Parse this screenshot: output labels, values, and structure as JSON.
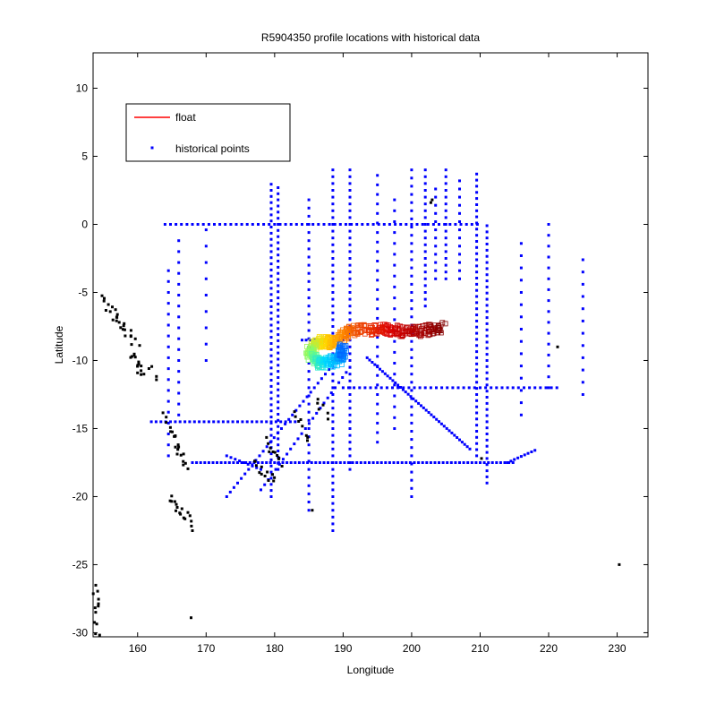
{
  "chart_data": {
    "type": "scatter",
    "title": "R5904350 profile locations with historical data",
    "xlabel": "Longitude",
    "ylabel": "Latitude",
    "xlim": [
      153.5,
      234.5
    ],
    "ylim": [
      -30.3,
      12.6
    ],
    "xticks": [
      160,
      170,
      180,
      190,
      200,
      210,
      220,
      230
    ],
    "yticks": [
      10,
      5,
      0,
      -5,
      -10,
      -15,
      -20,
      -25,
      -30
    ],
    "grid": false,
    "legend": {
      "placement": "top-left",
      "entries": [
        {
          "label": "float",
          "marker": "line",
          "color": "#ff0000"
        },
        {
          "label": "historical points",
          "marker": "dot",
          "color": "#0000ff"
        }
      ]
    },
    "series": [
      {
        "name": "historical points",
        "color": "#0000ff",
        "marker": "dot",
        "lines": [
          {
            "axis": "lat",
            "value": 0,
            "from": 164,
            "to": 210,
            "step": 0.8
          },
          {
            "axis": "lat",
            "value": -12,
            "from": 190,
            "to": 222,
            "step": 0.8
          },
          {
            "axis": "lat",
            "value": -14.5,
            "from": 162,
            "to": 183,
            "step": 0.7
          },
          {
            "axis": "lat",
            "value": -17.5,
            "from": 168,
            "to": 215,
            "step": 0.6
          },
          {
            "axis": "lat",
            "value": -8.5,
            "from": 184,
            "to": 190,
            "step": 0.6
          },
          {
            "axis": "lon",
            "value": 179.5,
            "from": -20,
            "to": 3,
            "step": 0.45
          },
          {
            "axis": "lon",
            "value": 180.5,
            "from": -18,
            "to": 3,
            "step": 0.45
          },
          {
            "axis": "lon",
            "value": 185,
            "from": -21,
            "to": 2,
            "step": 0.6
          },
          {
            "axis": "lon",
            "value": 188.5,
            "from": -22.5,
            "to": 4,
            "step": 0.5
          },
          {
            "axis": "lon",
            "value": 191,
            "from": -18,
            "to": 4,
            "step": 0.5
          },
          {
            "axis": "lon",
            "value": 195,
            "from": -16,
            "to": 4,
            "step": 0.7
          },
          {
            "axis": "lon",
            "value": 197.5,
            "from": -15,
            "to": 2,
            "step": 0.8
          },
          {
            "axis": "lon",
            "value": 200,
            "from": -20,
            "to": 4.4,
            "step": 0.6
          },
          {
            "axis": "lon",
            "value": 202,
            "from": -6,
            "to": 4,
            "step": 0.5
          },
          {
            "axis": "lon",
            "value": 203.5,
            "from": -4,
            "to": 3,
            "step": 0.6
          },
          {
            "axis": "lon",
            "value": 205,
            "from": -4,
            "to": 4,
            "step": 0.5
          },
          {
            "axis": "lon",
            "value": 207,
            "from": -4,
            "to": 3.5,
            "step": 0.6
          },
          {
            "axis": "lon",
            "value": 209.5,
            "from": -17,
            "to": 4,
            "step": 0.45
          },
          {
            "axis": "lon",
            "value": 211,
            "from": -19,
            "to": 0,
            "step": 0.45
          },
          {
            "axis": "lon",
            "value": 216,
            "from": -14,
            "to": -1,
            "step": 0.9
          },
          {
            "axis": "lon",
            "value": 220,
            "from": -12,
            "to": 0.5,
            "step": 0.8
          },
          {
            "axis": "lon",
            "value": 225,
            "from": -12.5,
            "to": -2,
            "step": 0.9
          },
          {
            "axis": "lon",
            "value": 164.5,
            "from": -17,
            "to": -3,
            "step": 0.8
          },
          {
            "axis": "lon",
            "value": 166,
            "from": -14,
            "to": -1,
            "step": 0.8
          },
          {
            "axis": "lon",
            "value": 170,
            "from": -10,
            "to": 0,
            "step": 1.2
          },
          {
            "axis": "seg",
            "x0": 193.5,
            "y0": -9.8,
            "x1": 208.5,
            "y1": -16.5,
            "n": 40
          },
          {
            "axis": "seg",
            "x0": 189,
            "y0": -10,
            "x1": 173,
            "y1": -20,
            "n": 30
          },
          {
            "axis": "seg",
            "x0": 191,
            "y0": -10.5,
            "x1": 178,
            "y1": -19.5,
            "n": 24
          },
          {
            "axis": "seg",
            "x0": 173,
            "y0": -17,
            "x1": 178,
            "y1": -18,
            "n": 8
          },
          {
            "axis": "seg",
            "x0": 214,
            "y0": -17.5,
            "x1": 218,
            "y1": -16.6,
            "n": 8
          }
        ]
      },
      {
        "name": "",
        "color": "#000000",
        "marker": "dot",
        "clusters": [
          {
            "x": 154.5,
            "y": -5.5,
            "x2": 158,
            "y2": -7.5,
            "n": 14
          },
          {
            "x": 157,
            "y": -7,
            "x2": 160,
            "y2": -8.8,
            "n": 12
          },
          {
            "x": 159,
            "y": -9.5,
            "x2": 161,
            "y2": -11,
            "n": 14
          },
          {
            "x": 165,
            "y": -15,
            "x2": 167,
            "y2": -18,
            "n": 16
          },
          {
            "x": 164.5,
            "y": -20,
            "x2": 168,
            "y2": -22,
            "n": 16
          },
          {
            "x": 177,
            "y": -17.5,
            "x2": 180,
            "y2": -19,
            "n": 12
          },
          {
            "x": 179,
            "y": -16,
            "x2": 181,
            "y2": -17.5,
            "n": 10
          },
          {
            "x": 183,
            "y": -14,
            "x2": 185,
            "y2": -16,
            "n": 8
          },
          {
            "x": 186,
            "y": -13,
            "x2": 188,
            "y2": -14,
            "n": 6
          },
          {
            "x": 153.8,
            "y": -26.5,
            "x2": 154.2,
            "y2": -30,
            "n": 12
          },
          {
            "x": 162,
            "y": -10.5,
            "x2": 163,
            "y2": -11.5,
            "n": 4
          },
          {
            "x": 163.5,
            "y": -13.5,
            "x2": 165,
            "y2": -15,
            "n": 4
          }
        ],
        "points": [
          [
            230.3,
            -25
          ],
          [
            167.8,
            -28.9
          ],
          [
            202.8,
            1.6
          ],
          [
            221.3,
            -9
          ],
          [
            203,
            1.8
          ],
          [
            210.2,
            -17.2
          ],
          [
            185.5,
            -21
          ],
          [
            168,
            -22.5
          ]
        ]
      },
      {
        "name": "float",
        "color": "#ff0000",
        "marker": "line",
        "track": [
          [
            204.5,
            -7.6
          ],
          [
            200,
            -7.9
          ],
          [
            195.5,
            -7.7
          ],
          [
            191,
            -7.8
          ],
          [
            188.5,
            -8.7
          ],
          [
            186.5,
            -8.6
          ],
          [
            185,
            -9.4
          ],
          [
            186.5,
            -10.3
          ],
          [
            189.5,
            -9.9
          ],
          [
            190,
            -9.2
          ]
        ]
      }
    ]
  }
}
